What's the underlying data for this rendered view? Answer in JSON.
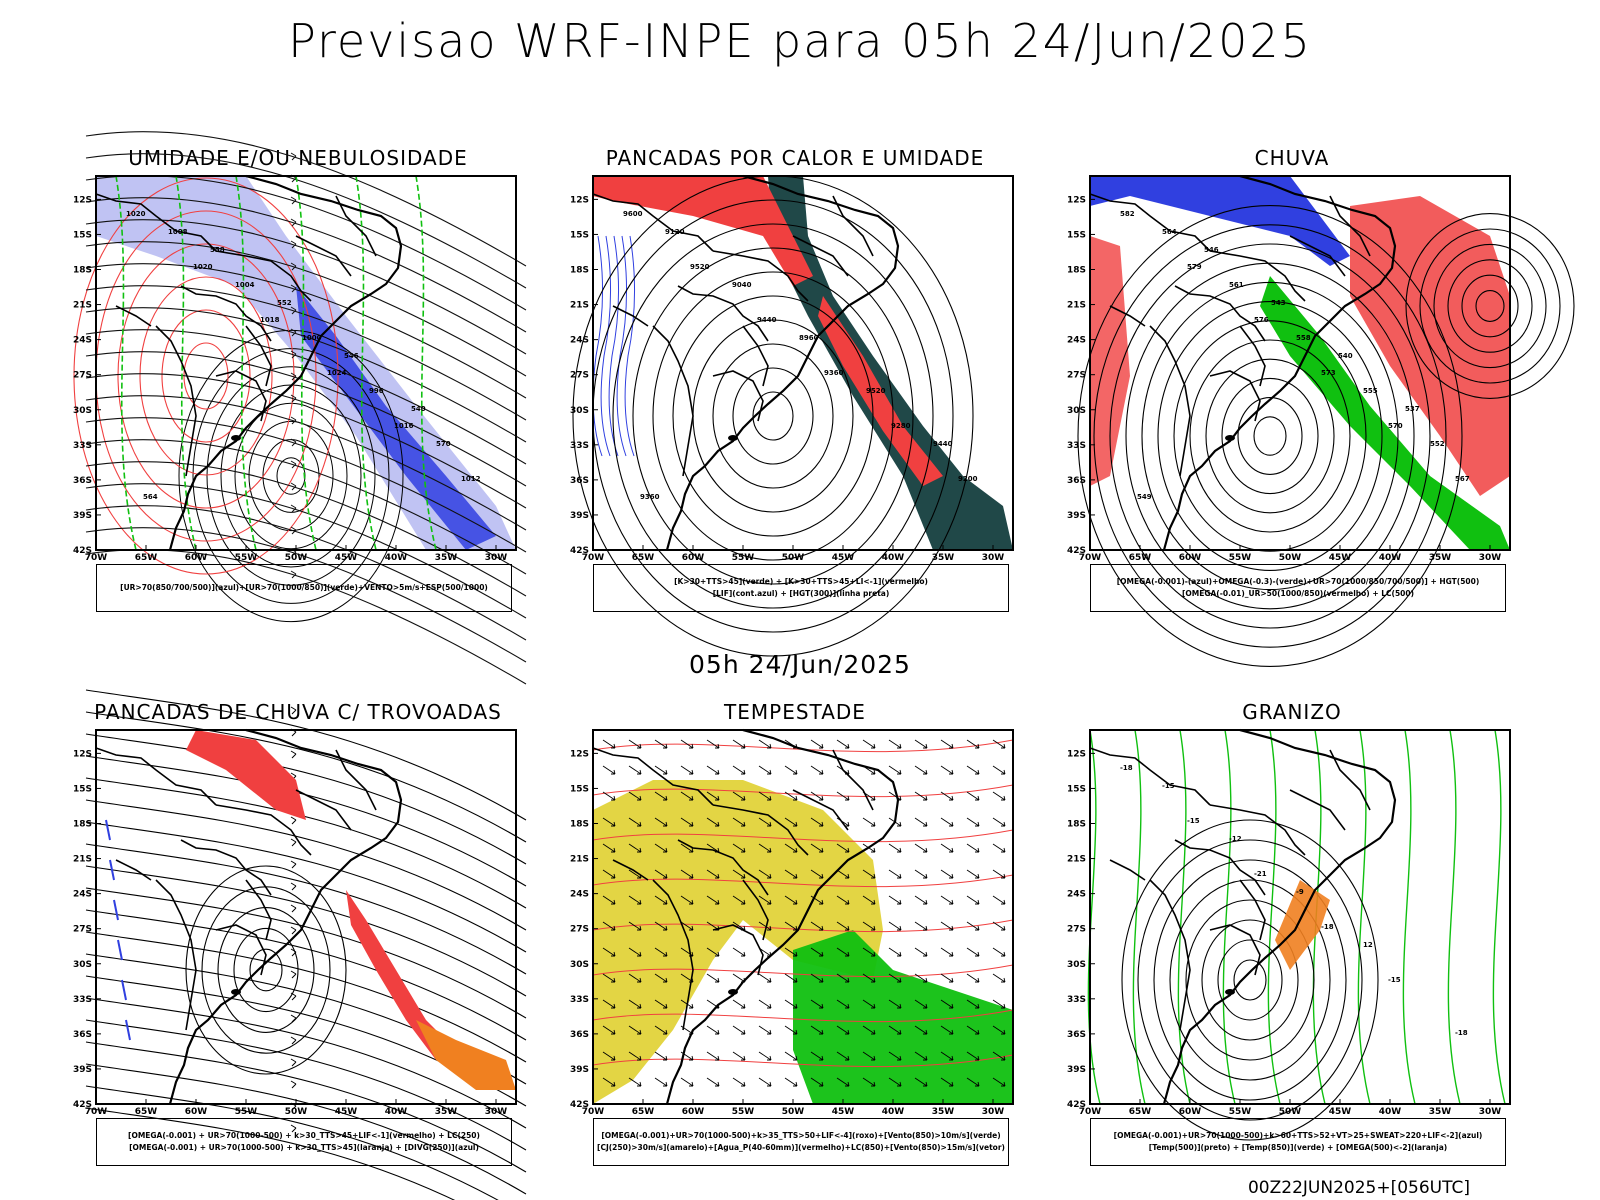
{
  "main_title": "Previsao WRF-INPE  para 05h 24/Jun/2025",
  "mid_title": "05h 24/Jun/2025",
  "footer": "00Z22JUN2025+[056UTC]",
  "axes": {
    "lat_ticks": [
      "12S",
      "15S",
      "18S",
      "21S",
      "24S",
      "27S",
      "30S",
      "33S",
      "36S",
      "39S",
      "42S"
    ],
    "lon_ticks": [
      "70W",
      "65W",
      "60W",
      "55W",
      "50W",
      "45W",
      "40W",
      "35W",
      "30W"
    ]
  },
  "colors": {
    "blue": "#3040e0",
    "light_blue": "#b0b4f0",
    "green": "#10c010",
    "red": "#f04040",
    "dark_teal": "#204848",
    "orange": "#f08020",
    "yellow": "#e0d030",
    "black": "#000000"
  },
  "panels": [
    {
      "title": "UMIDADE E/OU NEBULOSIDADE",
      "caption_lines": [
        "[UR>70(850/700/500)](azul)+[UR>70(1000/850)](verde)+VENTO>5m/s+ESP(500/1000)"
      ],
      "contour_labels": [
        "1020",
        "1020",
        "1018",
        "1024",
        "1016",
        "1012",
        "1008",
        "1004",
        "1000",
        "996",
        "570",
        "564",
        "558",
        "552",
        "546",
        "540"
      ]
    },
    {
      "title": "PANCADAS POR CALOR E UMIDADE",
      "caption_lines": [
        "[K>30+TTS>45](verde) + [K>30+TTS>45+LI<-1](vermelho)",
        "[LIF](cont.azul) + [HGT(300)](linha preta)"
      ],
      "contour_labels": [
        "9600",
        "9520",
        "9440",
        "9360",
        "9280",
        "9200",
        "9120",
        "9040",
        "8960",
        "9520",
        "9440",
        "9360"
      ]
    },
    {
      "title": "CHUVA",
      "caption_lines": [
        "[OMEGA(-0.001)-(azul)+OMEGA(-0.3)-(verde)+UR>70(1000/850/700/500)] + HGT(500)",
        "[OMEGA(-0.01)_UR>50(1000/850)(vermelho) + LC(500)"
      ],
      "contour_labels": [
        "582",
        "579",
        "576",
        "573",
        "570",
        "567",
        "564",
        "561",
        "558",
        "555",
        "552",
        "549",
        "546",
        "543",
        "540",
        "537"
      ]
    },
    {
      "title": "PANCADAS DE CHUVA C/ TROVOADAS",
      "caption_lines": [
        "[OMEGA(-0.001) + UR>70(1000-500) + k>30_TTS>45+LIF<-1](vermelho) + LC(250)",
        "[OMEGA(-0.001) + UR>70(1000-500) + k>30_TTS>45](laranja) + [DIVG(250)](azul)"
      ],
      "contour_labels": []
    },
    {
      "title": "TEMPESTADE",
      "caption_lines": [
        "[OMEGA(-0.001)+UR>70(1000-500)+k>35_TTS>50+LIF<-4](roxo)+[Vento(850)>10m/s](verde)",
        "[CJ(250)>30m/s](amarelo)+[Agua_P(40-60mm)](vermelho)+LC(850)+[Vento(850)>15m/s](vetor)"
      ],
      "contour_labels": []
    },
    {
      "title": "GRANIZO",
      "caption_lines": [
        "[OMEGA(-0.001)+UR>70(1000-500)+k>60+TTS>52+VT>25+SWEAT>220+LIF<-2](azul)",
        "[Temp(500)](preto) + [Temp(850)](verde) + [OMEGA(500)<-2](laranja)"
      ],
      "contour_labels": [
        "-18",
        "-15",
        "-21",
        "-18",
        "-15",
        "-18",
        "-15",
        "-12",
        "-9",
        "12"
      ]
    }
  ]
}
